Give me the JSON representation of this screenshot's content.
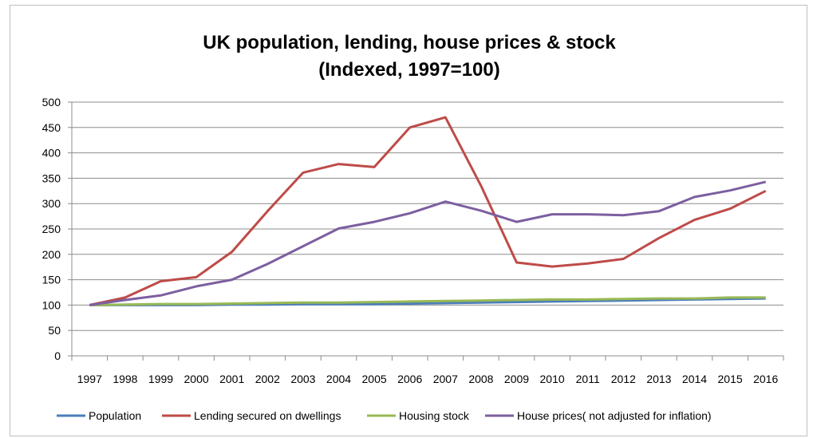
{
  "chart_data": {
    "type": "line",
    "title_line1": "UK population,  lending, house prices & stock",
    "title_line2": "(Indexed, 1997=100)",
    "xlabel": "",
    "ylabel": "",
    "ylim": [
      0,
      500
    ],
    "yticks": [
      0,
      50,
      100,
      150,
      200,
      250,
      300,
      350,
      400,
      450,
      500
    ],
    "grid": true,
    "legend_position": "bottom",
    "categories": [
      "1997",
      "1998",
      "1999",
      "2000",
      "2001",
      "2002",
      "2003",
      "2004",
      "2005",
      "2006",
      "2007",
      "2008",
      "2009",
      "2010",
      "2011",
      "2012",
      "2013",
      "2014",
      "2015",
      "2016"
    ],
    "series": [
      {
        "name": "Population",
        "color": "#4a7ebb",
        "values": [
          100,
          100,
          100,
          100,
          101,
          101,
          102,
          102,
          102,
          103,
          104,
          105,
          106,
          107,
          108,
          109,
          110,
          111,
          112,
          113
        ]
      },
      {
        "name": "Lending secured on dwellings",
        "color": "#be4b48",
        "values": [
          100,
          115,
          147,
          155,
          205,
          285,
          361,
          378,
          372,
          450,
          470,
          335,
          184,
          176,
          182,
          191,
          232,
          268,
          290,
          325
        ]
      },
      {
        "name": "Housing stock",
        "color": "#98b954",
        "values": [
          100,
          101,
          102,
          102,
          103,
          104,
          105,
          105,
          106,
          107,
          108,
          109,
          110,
          111,
          111,
          112,
          113,
          113,
          115,
          115
        ]
      },
      {
        "name": "House prices( not adjusted for inflation)",
        "color": "#7d5fa0",
        "values": [
          100,
          110,
          119,
          137,
          150,
          181,
          216,
          251,
          264,
          281,
          304,
          286,
          264,
          279,
          279,
          277,
          285,
          313,
          326,
          343
        ]
      }
    ]
  }
}
